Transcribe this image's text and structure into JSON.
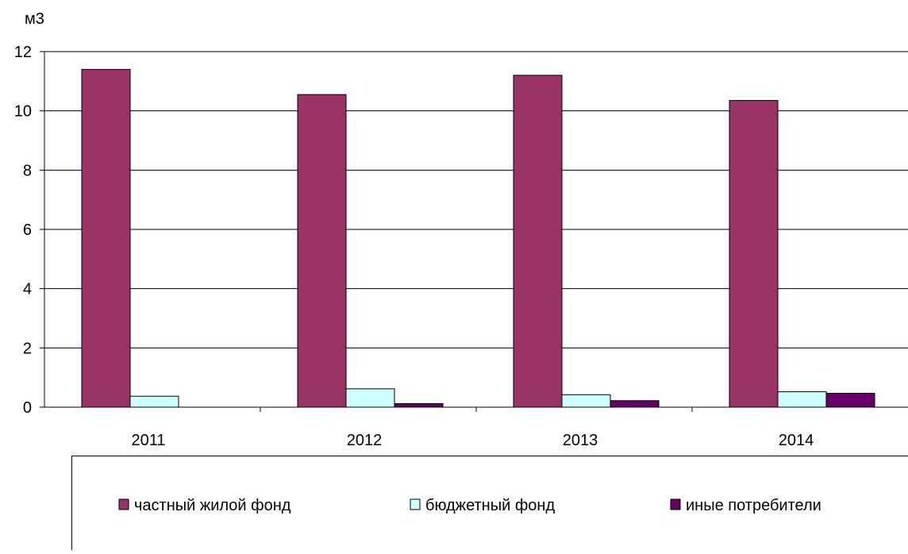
{
  "chart_data": {
    "type": "bar",
    "title": "",
    "xlabel": "",
    "ylabel": "м3",
    "ylim": [
      0,
      12
    ],
    "yticks": [
      0,
      2,
      4,
      6,
      8,
      10,
      12
    ],
    "grid": true,
    "legend_position": "bottom",
    "categories": [
      "2011",
      "2012",
      "2013",
      "2014"
    ],
    "series": [
      {
        "name": "частный жилой фонд",
        "color": "#993366",
        "values": [
          11.4,
          10.55,
          11.2,
          10.35
        ]
      },
      {
        "name": "бюджетный фонд",
        "color": "#ccffff",
        "values": [
          0.37,
          0.62,
          0.42,
          0.52
        ]
      },
      {
        "name": "иные потребители",
        "color": "#660066",
        "values": [
          0.0,
          0.12,
          0.22,
          0.47
        ]
      }
    ]
  }
}
